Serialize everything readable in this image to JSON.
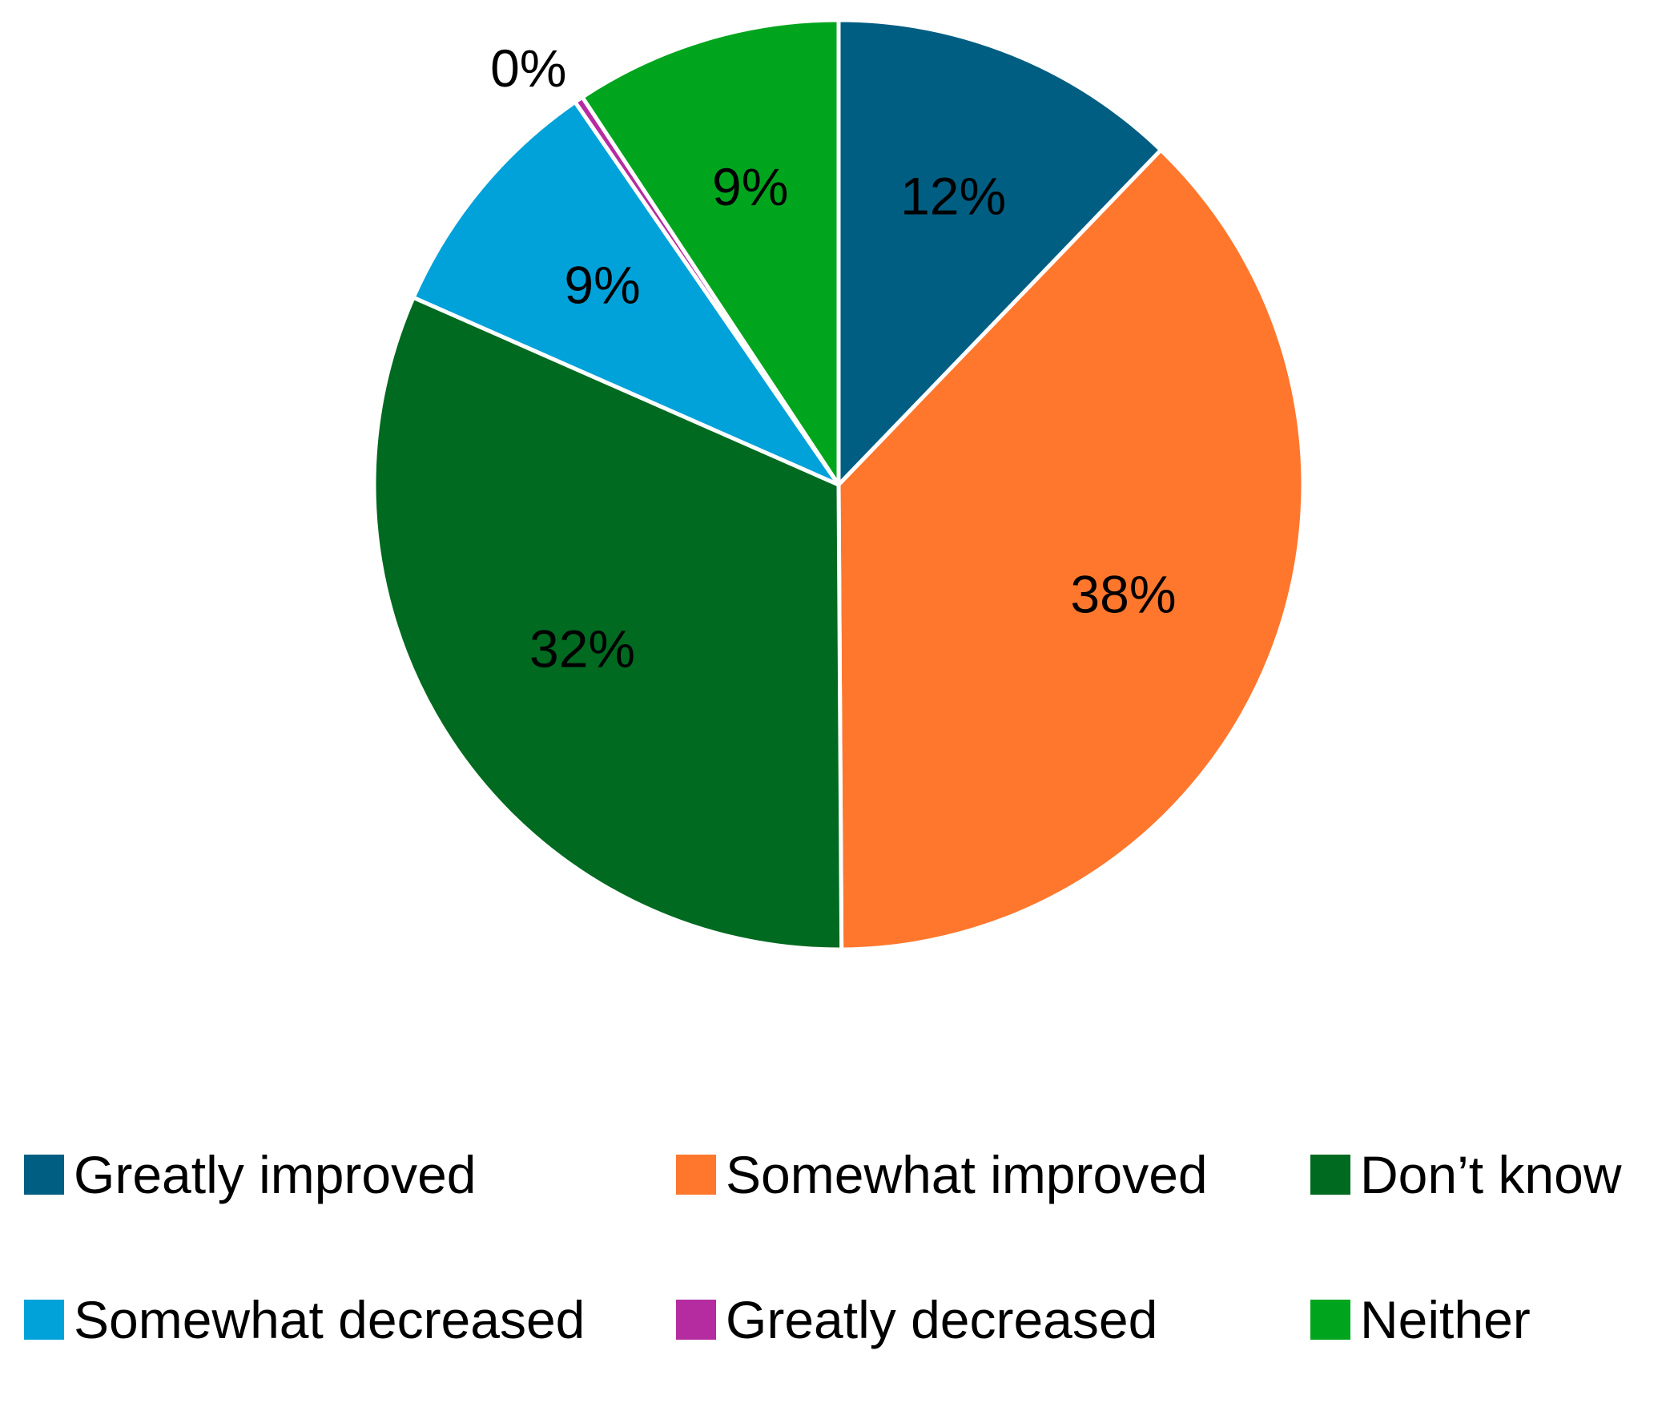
{
  "chart_data": {
    "type": "pie",
    "title": "",
    "start_angle_deg": 0,
    "direction": "clockwise",
    "slices": [
      {
        "name": "Greatly improved",
        "value": 12.2,
        "label": "12%",
        "color": "#005E82"
      },
      {
        "name": "Somewhat improved",
        "value": 37.7,
        "label": "38%",
        "color": "#FF772D"
      },
      {
        "name": "Don’t know",
        "value": 31.7,
        "label": "32%",
        "color": "#006A20"
      },
      {
        "name": "Somewhat decreased",
        "value": 8.8,
        "label": "9%",
        "color": "#00A2D9"
      },
      {
        "name": "Greatly decreased",
        "value": 0.3,
        "label": "0%",
        "color": "#B52CA0"
      },
      {
        "name": "Neither",
        "value": 9.3,
        "label": "9%",
        "color": "#00A51E"
      }
    ],
    "legend_position": "bottom"
  }
}
